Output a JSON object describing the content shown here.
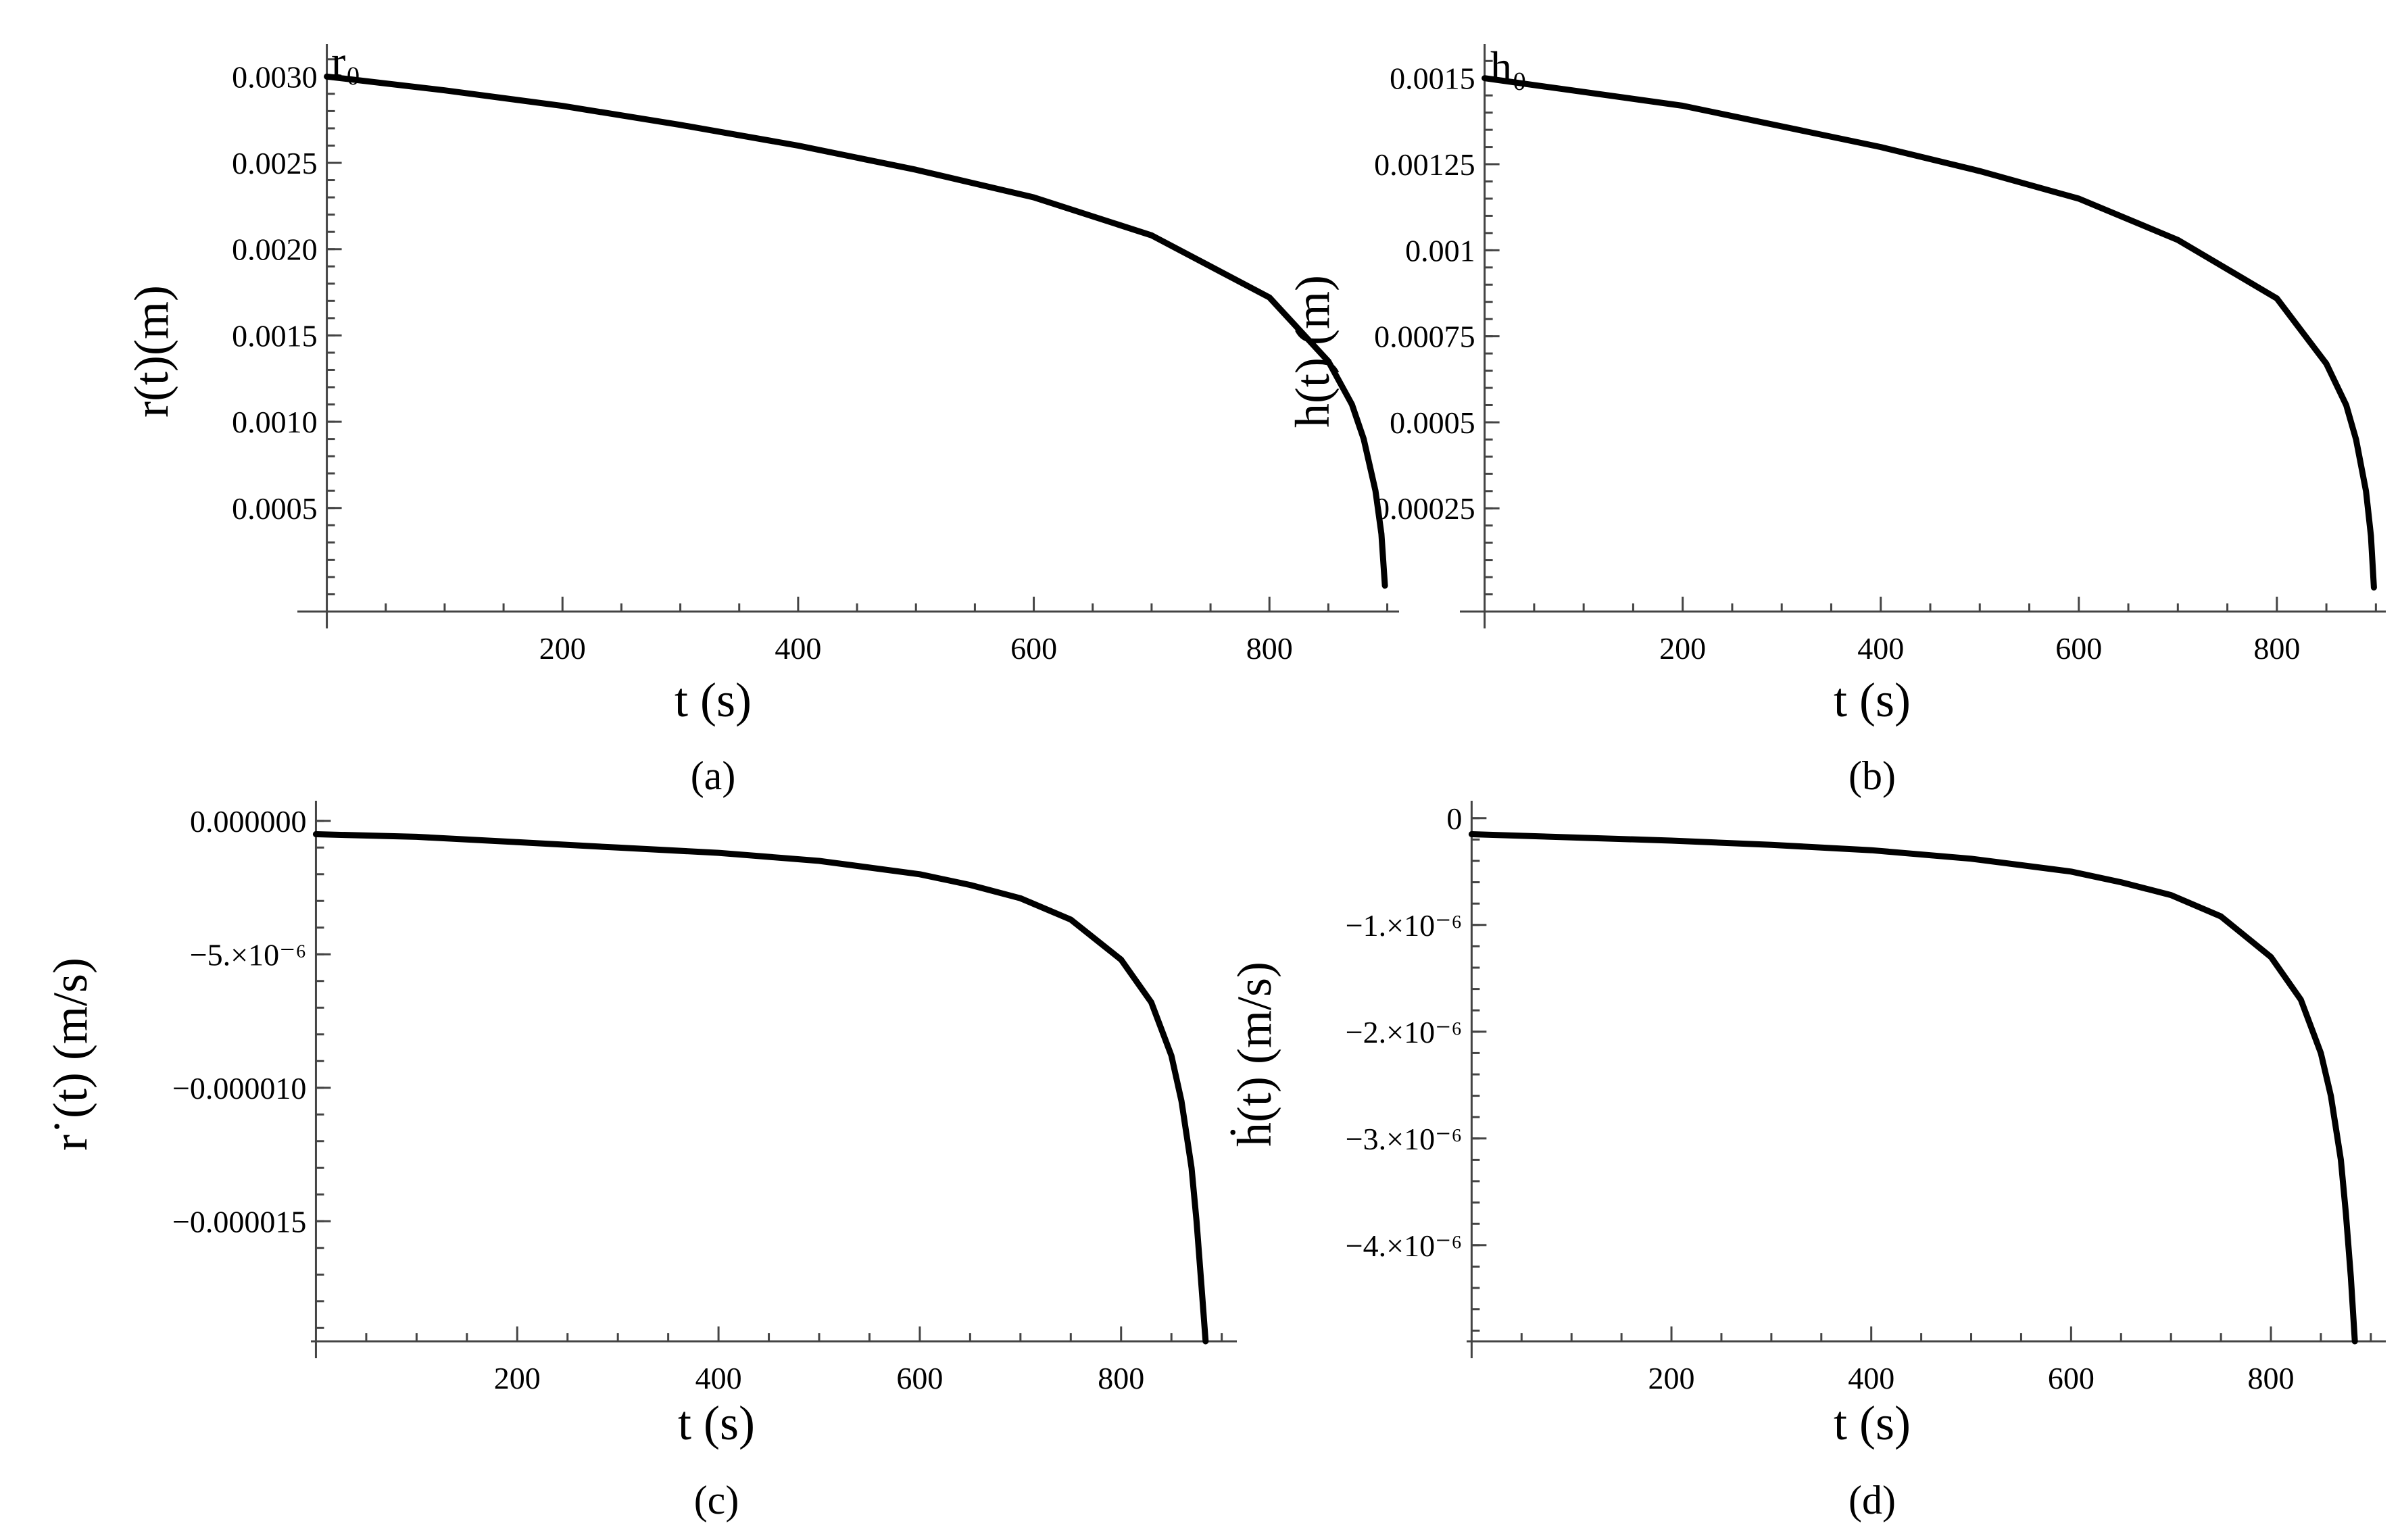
{
  "chart_data": [
    {
      "type": "line",
      "panel_label": "(a)",
      "corner_label": "r₀",
      "xlabel": "t (s)",
      "ylabel": "r(t)(m)",
      "xlim": [
        -25,
        910
      ],
      "ylim": [
        -0.0001,
        0.00315
      ],
      "xticks": [
        200,
        400,
        600,
        800
      ],
      "xtick_labels": [
        "200",
        "400",
        "600",
        "800"
      ],
      "yticks": [
        0.0005,
        0.001,
        0.0015,
        0.002,
        0.0025,
        0.003
      ],
      "ytick_labels": [
        "0.0005",
        "0.0010",
        "0.0015",
        "0.0020",
        "0.0025",
        "0.0030"
      ],
      "series": [
        {
          "x": [
            0,
            100,
            200,
            300,
            400,
            500,
            600,
            700,
            800,
            850,
            870,
            880,
            890,
            895,
            898
          ],
          "y": [
            0.003,
            0.00292,
            0.00283,
            0.00272,
            0.0026,
            0.00246,
            0.0023,
            0.00208,
            0.00172,
            0.00135,
            0.0011,
            0.0009,
            0.0006,
            0.00035,
            5e-05
          ]
        }
      ]
    },
    {
      "type": "line",
      "panel_label": "(b)",
      "corner_label": "h₀",
      "xlabel": "t (s)",
      "ylabel": "h(t) (m)",
      "xlim": [
        -25,
        910
      ],
      "ylim": [
        -5e-05,
        0.00158
      ],
      "xticks": [
        200,
        400,
        600,
        800
      ],
      "xtick_labels": [
        "200",
        "400",
        "600",
        "800"
      ],
      "yticks": [
        0.00025,
        0.0005,
        0.00075,
        0.001,
        0.00125,
        0.0015
      ],
      "ytick_labels": [
        "0.00025",
        "0.0005",
        "0.00075",
        "0.001",
        "0.00125",
        "0.0015"
      ],
      "series": [
        {
          "x": [
            0,
            100,
            200,
            300,
            400,
            500,
            600,
            700,
            800,
            850,
            870,
            880,
            890,
            895,
            898
          ],
          "y": [
            0.0015,
            0.00146,
            0.00142,
            0.00136,
            0.0013,
            0.00123,
            0.00115,
            0.00103,
            0.00086,
            0.00067,
            0.00055,
            0.00045,
            0.0003,
            0.00017,
            2e-05
          ]
        }
      ]
    },
    {
      "type": "line",
      "panel_label": "(c)",
      "xlabel": "t (s)",
      "ylabel": "r˙(t) (m/s)",
      "xlim": [
        -5,
        915
      ],
      "ylim": [
        -1.95e-05,
        5e-07
      ],
      "xticks": [
        200,
        400,
        600,
        800
      ],
      "xtick_labels": [
        "200",
        "400",
        "600",
        "800"
      ],
      "yticks": [
        0,
        -5e-06,
        -1e-05,
        -1.5e-05
      ],
      "ytick_labels": [
        "0.000000",
        "−5.×10⁻⁶",
        "−0.000010",
        "−0.000015"
      ],
      "series": [
        {
          "x": [
            0,
            100,
            200,
            300,
            400,
            500,
            600,
            650,
            700,
            750,
            800,
            830,
            850,
            860,
            870,
            875,
            880,
            884
          ],
          "y": [
            -5e-07,
            -6e-07,
            -8e-07,
            -1e-06,
            -1.2e-06,
            -1.5e-06,
            -2e-06,
            -2.4e-06,
            -2.9e-06,
            -3.7e-06,
            -5.2e-06,
            -6.8e-06,
            -8.8e-06,
            -1.05e-05,
            -1.3e-05,
            -1.5e-05,
            -1.75e-05,
            -1.95e-05
          ]
        }
      ]
    },
    {
      "type": "line",
      "panel_label": "(d)",
      "xlabel": "t (s)",
      "ylabel": "ḣ(t) (m/s)",
      "xlim": [
        -5,
        915
      ],
      "ylim": [
        -4.9e-06,
        1e-07
      ],
      "xticks": [
        200,
        400,
        600,
        800
      ],
      "xtick_labels": [
        "200",
        "400",
        "600",
        "800"
      ],
      "yticks": [
        0,
        -1e-06,
        -2e-06,
        -3e-06,
        -4e-06
      ],
      "ytick_labels": [
        "0",
        "−1.×10⁻⁶",
        "−2.×10⁻⁶",
        "−3.×10⁻⁶",
        "−4.×10⁻⁶"
      ],
      "series": [
        {
          "x": [
            0,
            100,
            200,
            300,
            400,
            500,
            600,
            650,
            700,
            750,
            800,
            830,
            850,
            860,
            870,
            875,
            880,
            884
          ],
          "y": [
            -1.5e-07,
            -1.8e-07,
            -2.1e-07,
            -2.5e-07,
            -3e-07,
            -3.8e-07,
            -5e-07,
            -6e-07,
            -7.2e-07,
            -9.2e-07,
            -1.3e-06,
            -1.7e-06,
            -2.2e-06,
            -2.6e-06,
            -3.2e-06,
            -3.7e-06,
            -4.3e-06,
            -4.9e-06
          ]
        }
      ]
    }
  ]
}
